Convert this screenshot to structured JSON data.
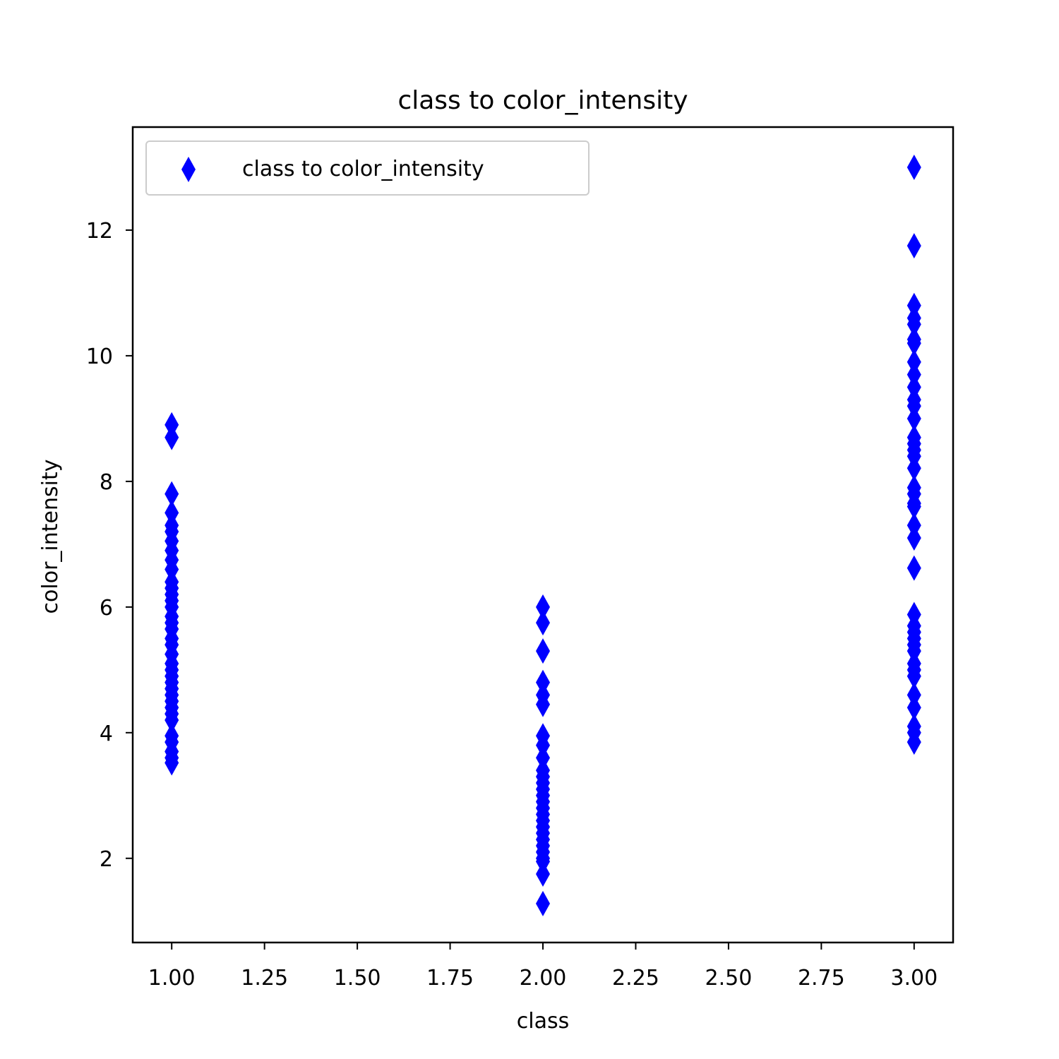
{
  "chart_data": {
    "type": "scatter",
    "title": "class to color_intensity",
    "xlabel": "class",
    "ylabel": "color_intensity",
    "xlim": [
      0.895,
      3.105
    ],
    "ylim": [
      0.66,
      13.64
    ],
    "xticks": [
      1.0,
      1.25,
      1.5,
      1.75,
      2.0,
      2.25,
      2.5,
      2.75,
      3.0
    ],
    "xtick_labels": [
      "1.00",
      "1.25",
      "1.50",
      "1.75",
      "2.00",
      "2.25",
      "2.50",
      "2.75",
      "3.00"
    ],
    "yticks": [
      2,
      4,
      6,
      8,
      10,
      12
    ],
    "ytick_labels": [
      "2",
      "4",
      "6",
      "8",
      "10",
      "12"
    ],
    "grid": false,
    "legend": {
      "position": "top-left",
      "entries": [
        "class to color_intensity"
      ]
    },
    "marker": "thin_diamond",
    "color": "#0000ff",
    "series": [
      {
        "name": "class to color_intensity",
        "points": [
          [
            1,
            8.9
          ],
          [
            1,
            8.7
          ],
          [
            1,
            7.8
          ],
          [
            1,
            7.5
          ],
          [
            1,
            7.3
          ],
          [
            1,
            7.2
          ],
          [
            1,
            7.05
          ],
          [
            1,
            6.9
          ],
          [
            1,
            6.75
          ],
          [
            1,
            6.6
          ],
          [
            1,
            6.4
          ],
          [
            1,
            6.3
          ],
          [
            1,
            6.2
          ],
          [
            1,
            6.1
          ],
          [
            1,
            6.0
          ],
          [
            1,
            5.85
          ],
          [
            1,
            5.75
          ],
          [
            1,
            5.65
          ],
          [
            1,
            5.5
          ],
          [
            1,
            5.4
          ],
          [
            1,
            5.25
          ],
          [
            1,
            5.1
          ],
          [
            1,
            5.0
          ],
          [
            1,
            4.9
          ],
          [
            1,
            4.8
          ],
          [
            1,
            4.7
          ],
          [
            1,
            4.6
          ],
          [
            1,
            4.5
          ],
          [
            1,
            4.4
          ],
          [
            1,
            4.3
          ],
          [
            1,
            4.2
          ],
          [
            1,
            3.95
          ],
          [
            1,
            3.85
          ],
          [
            1,
            3.7
          ],
          [
            1,
            3.6
          ],
          [
            1,
            3.52
          ],
          [
            2,
            6.0
          ],
          [
            2,
            5.75
          ],
          [
            2,
            5.3
          ],
          [
            2,
            4.8
          ],
          [
            2,
            4.6
          ],
          [
            2,
            4.45
          ],
          [
            2,
            3.95
          ],
          [
            2,
            3.8
          ],
          [
            2,
            3.6
          ],
          [
            2,
            3.4
          ],
          [
            2,
            3.3
          ],
          [
            2,
            3.2
          ],
          [
            2,
            3.1
          ],
          [
            2,
            3.0
          ],
          [
            2,
            2.9
          ],
          [
            2,
            2.8
          ],
          [
            2,
            2.7
          ],
          [
            2,
            2.6
          ],
          [
            2,
            2.5
          ],
          [
            2,
            2.4
          ],
          [
            2,
            2.3
          ],
          [
            2,
            2.2
          ],
          [
            2,
            2.1
          ],
          [
            2,
            2.0
          ],
          [
            2,
            1.95
          ],
          [
            2,
            1.75
          ],
          [
            2,
            1.28
          ],
          [
            3,
            13.0
          ],
          [
            3,
            11.75
          ],
          [
            3,
            10.8
          ],
          [
            3,
            10.6
          ],
          [
            3,
            10.5
          ],
          [
            3,
            10.26
          ],
          [
            3,
            10.2
          ],
          [
            3,
            9.9
          ],
          [
            3,
            9.7
          ],
          [
            3,
            9.5
          ],
          [
            3,
            9.3
          ],
          [
            3,
            9.2
          ],
          [
            3,
            9.0
          ],
          [
            3,
            8.7
          ],
          [
            3,
            8.6
          ],
          [
            3,
            8.5
          ],
          [
            3,
            8.4
          ],
          [
            3,
            8.21
          ],
          [
            3,
            7.9
          ],
          [
            3,
            7.8
          ],
          [
            3,
            7.65
          ],
          [
            3,
            7.6
          ],
          [
            3,
            7.3
          ],
          [
            3,
            7.1
          ],
          [
            3,
            6.62
          ],
          [
            3,
            5.88
          ],
          [
            3,
            5.7
          ],
          [
            3,
            5.6
          ],
          [
            3,
            5.5
          ],
          [
            3,
            5.4
          ],
          [
            3,
            5.3
          ],
          [
            3,
            5.1
          ],
          [
            3,
            5.0
          ],
          [
            3,
            4.9
          ],
          [
            3,
            4.6
          ],
          [
            3,
            4.4
          ],
          [
            3,
            4.1
          ],
          [
            3,
            4.0
          ],
          [
            3,
            3.85
          ]
        ]
      }
    ]
  }
}
